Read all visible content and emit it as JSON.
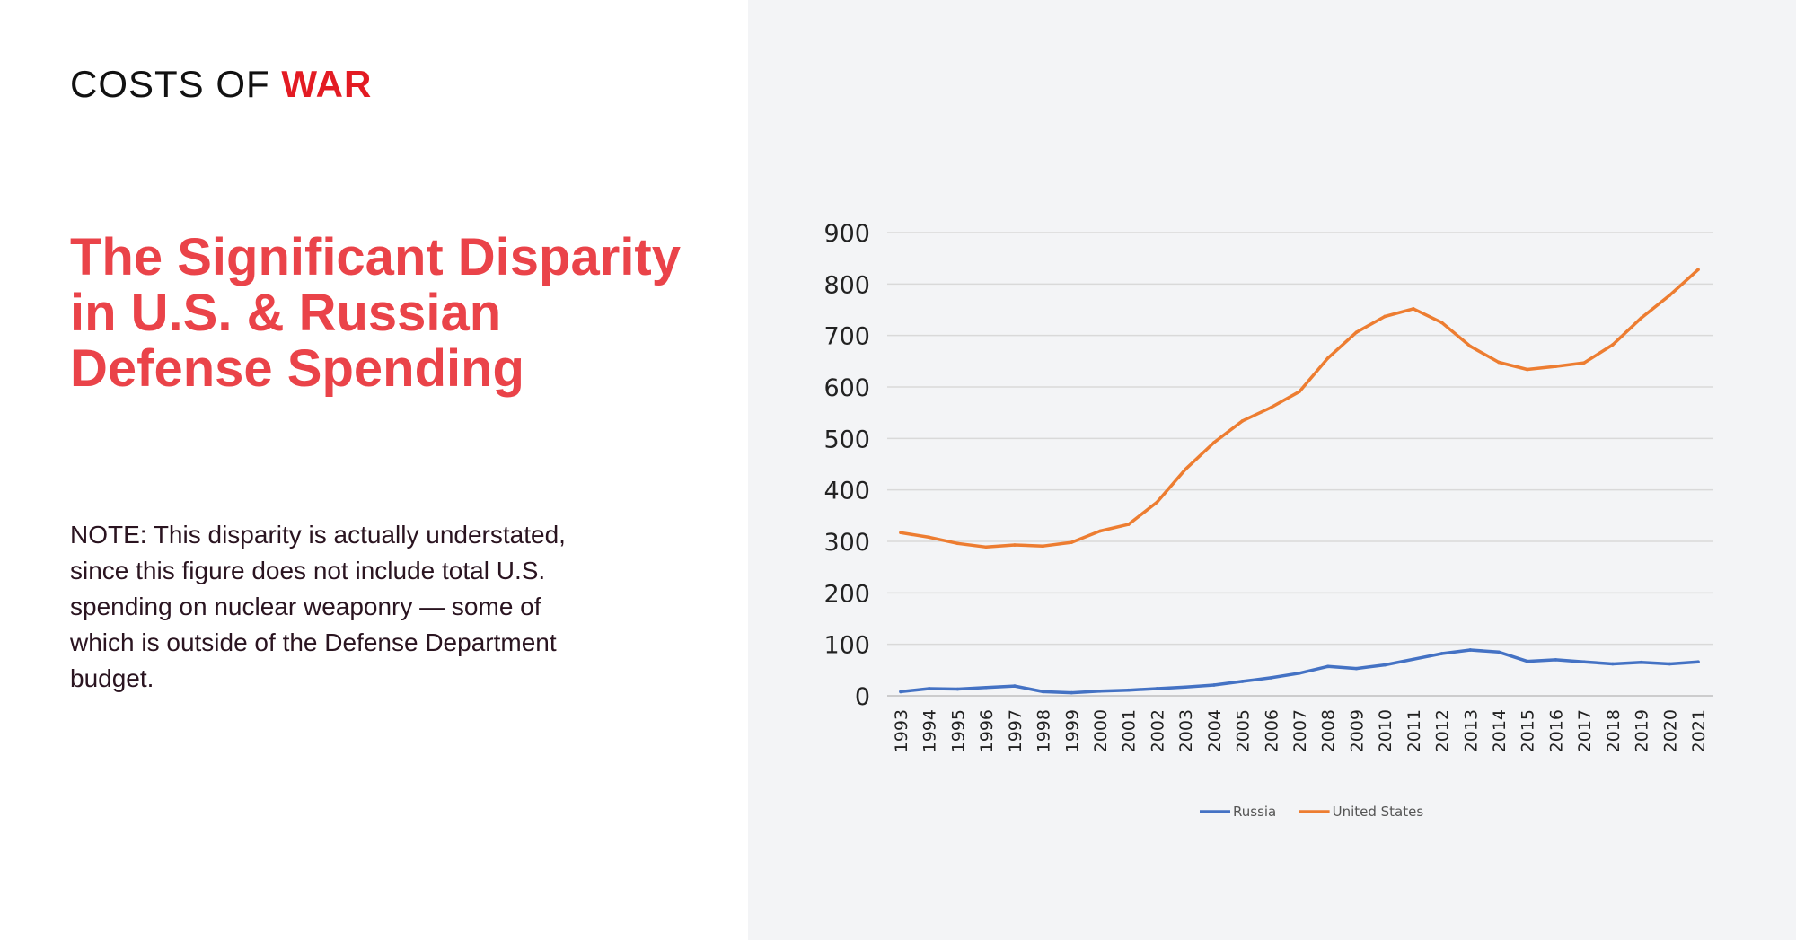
{
  "brand": {
    "prefix": "COSTS OF",
    "emphasis": "WAR"
  },
  "title": "The Significant Disparity in U.S. & Russian Defense Spending",
  "note": "NOTE: This disparity is actually understated, since this figure does not include total U.S. spending on nuclear weaponry — some of which is outside of the Defense Department budget.",
  "colors": {
    "brand_red": "#e31b23",
    "title_red": "#ea4349",
    "russia": "#4472c4",
    "united_states": "#ed7d31",
    "panel_bg": "#f3f4f6",
    "grid": "#d9d9d9"
  },
  "chart_data": {
    "type": "line",
    "title": "",
    "xlabel": "",
    "ylabel": "",
    "ylim": [
      0,
      900
    ],
    "yticks": [
      0,
      100,
      200,
      300,
      400,
      500,
      600,
      700,
      800,
      900
    ],
    "grid": true,
    "legend_position": "bottom",
    "categories": [
      "1993",
      "1994",
      "1995",
      "1996",
      "1997",
      "1998",
      "1999",
      "2000",
      "2001",
      "2002",
      "2003",
      "2004",
      "2005",
      "2006",
      "2007",
      "2008",
      "2009",
      "2010",
      "2011",
      "2012",
      "2013",
      "2014",
      "2015",
      "2016",
      "2017",
      "2018",
      "2019",
      "2020",
      "2021"
    ],
    "series": [
      {
        "name": "Russia",
        "color": "#4472c4",
        "values": [
          8,
          14,
          13,
          16,
          19,
          8,
          6,
          9,
          11,
          14,
          17,
          21,
          28,
          35,
          44,
          57,
          53,
          60,
          71,
          82,
          89,
          85,
          67,
          70,
          66,
          62,
          65,
          62,
          66
        ]
      },
      {
        "name": "United States",
        "color": "#ed7d31",
        "values": [
          317,
          308,
          296,
          289,
          293,
          291,
          298,
          320,
          333,
          376,
          440,
          492,
          534,
          560,
          591,
          656,
          706,
          737,
          752,
          725,
          679,
          648,
          634,
          640,
          647,
          682,
          734,
          778,
          828
        ]
      }
    ]
  }
}
